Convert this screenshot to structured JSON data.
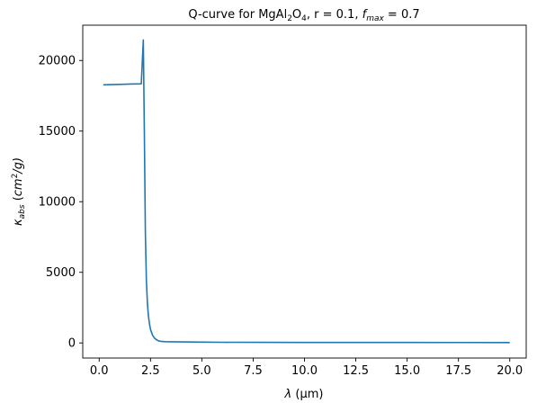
{
  "chart_data": {
    "type": "line",
    "title": {
      "prefix": "Q-curve for MgAl",
      "sub1": "2",
      "mid": "O",
      "sub2": "4",
      "suffix": ", r = 0.1, ",
      "f_symbol": "f",
      "f_sub": "max",
      "f_value": " = 0.7"
    },
    "xlabel": {
      "symbol": "λ",
      "unit": " (μm)"
    },
    "ylabel": {
      "kappa": "κ",
      "kappa_sub": "abs",
      "unit_open": " (",
      "unit_cm": "cm",
      "unit_sup": "2",
      "unit_rest": "/g)"
    },
    "xlim": [
      -0.8,
      20.8
    ],
    "ylim": [
      -1070,
      22500
    ],
    "x_ticks": [
      0,
      2.5,
      5,
      7.5,
      10,
      12.5,
      15,
      17.5,
      20
    ],
    "x_tick_labels": [
      "0.0",
      "2.5",
      "5.0",
      "7.5",
      "10.0",
      "12.5",
      "15.0",
      "17.5",
      "20.0"
    ],
    "y_ticks": [
      0,
      5000,
      10000,
      15000,
      20000
    ],
    "y_tick_labels": [
      "0",
      "5000",
      "10000",
      "15000",
      "20000"
    ],
    "grid": false,
    "series": [
      {
        "color": "#1f77b4",
        "x": [
          0.2,
          0.5,
          1.0,
          1.5,
          2.05,
          2.1,
          2.15,
          2.2,
          2.25,
          2.3,
          2.35,
          2.4,
          2.45,
          2.5,
          2.6,
          2.7,
          2.8,
          2.9,
          3.0,
          3.2,
          3.5,
          4.0,
          5.0,
          6.0,
          8.0,
          10.0,
          12.5,
          15.0,
          17.5,
          20.0
        ],
        "y": [
          18280,
          18290,
          18310,
          18330,
          18350,
          19900,
          21450,
          15000,
          7800,
          4400,
          2800,
          1900,
          1350,
          950,
          550,
          330,
          210,
          145,
          110,
          90,
          80,
          70,
          55,
          45,
          40,
          35,
          32,
          30,
          28,
          27
        ]
      }
    ]
  }
}
